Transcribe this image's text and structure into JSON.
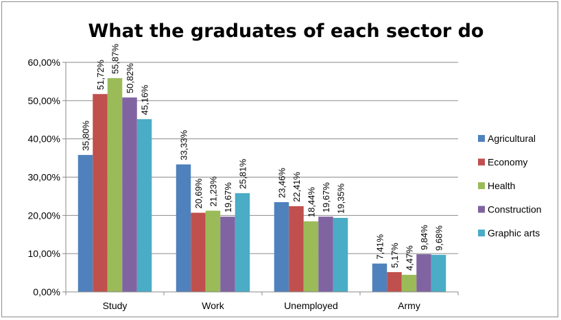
{
  "chart_data": {
    "type": "bar",
    "title": "What the graduates of each sector do",
    "xlabel": "",
    "ylabel": "",
    "categories": [
      "Study",
      "Work",
      "Unemployed",
      "Army"
    ],
    "ylim": [
      0,
      60
    ],
    "yticks": [
      0,
      10,
      20,
      30,
      40,
      50,
      60
    ],
    "ytick_labels": [
      "0,00%",
      "10,00%",
      "20,00%",
      "30,00%",
      "40,00%",
      "50,00%",
      "60,00%"
    ],
    "grid": true,
    "legend_position": "right",
    "series": [
      {
        "name": "Agricultural",
        "color": "#4f81bd",
        "values": [
          35.8,
          33.33,
          23.46,
          7.41
        ],
        "labels": [
          "35,80%",
          "33,33%",
          "23,46%",
          "7,41%"
        ]
      },
      {
        "name": "Economy",
        "color": "#c0504d",
        "values": [
          51.72,
          20.69,
          22.41,
          5.17
        ],
        "labels": [
          "51,72%",
          "20,69%",
          "22,41%",
          "5,17%"
        ]
      },
      {
        "name": "Health",
        "color": "#9bbb59",
        "values": [
          55.87,
          21.23,
          18.44,
          4.47
        ],
        "labels": [
          "55,87%",
          "21,23%",
          "18,44%",
          "4,47%"
        ]
      },
      {
        "name": "Construction",
        "color": "#8064a2",
        "values": [
          50.82,
          19.67,
          19.67,
          9.84
        ],
        "labels": [
          "50,82%",
          "19,67%",
          "19,67%",
          "9,84%"
        ]
      },
      {
        "name": "Graphic arts",
        "color": "#4bacc6",
        "values": [
          45.16,
          25.81,
          19.35,
          9.68
        ],
        "labels": [
          "45,16%",
          "25,81%",
          "19,35%",
          "9,68%"
        ]
      }
    ]
  }
}
